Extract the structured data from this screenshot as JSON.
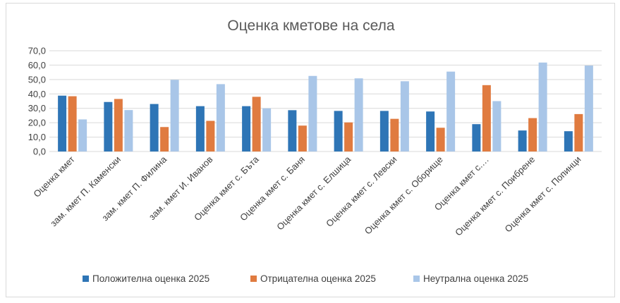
{
  "chart_data": {
    "type": "bar",
    "title": "Оценка кметове на села",
    "xlabel": "",
    "ylabel": "",
    "ylim": [
      0,
      70
    ],
    "yticks": [
      "0,0",
      "10,0",
      "20,0",
      "30,0",
      "40,0",
      "50,0",
      "60,0",
      "70,0"
    ],
    "grid": true,
    "legend_position": "bottom",
    "categories": [
      "Оценка кмет",
      "зам. кмет П. Каменски",
      "зам. кмет П. Филина",
      "зам. кмет И. Иванов",
      "Оценка кмет с. Бъта",
      "Оценка кмет с. Баня",
      "Оценка кмет с. Елшица",
      "Оценка кмет с. Левски",
      "Оценка кмет с. Оборище",
      "Оценка кмет с.…",
      "Оценка кмет с. Поибрене",
      "Оценка кмет с. Попинци"
    ],
    "series": [
      {
        "name": "Положителна оценка 2025",
        "color": "#2e75b6",
        "values": [
          38.8,
          34.4,
          33.0,
          31.5,
          31.5,
          28.7,
          28.2,
          28.2,
          27.8,
          19.0,
          14.6,
          14.1
        ]
      },
      {
        "name": "Отрицателна оценка 2025",
        "color": "#e07b40",
        "values": [
          38.4,
          36.5,
          17.0,
          21.3,
          38.0,
          18.0,
          20.2,
          22.7,
          16.5,
          46.1,
          23.2,
          26.0
        ]
      },
      {
        "name": "Неутрална оценка 2025",
        "color": "#a9c6e8",
        "values": [
          22.3,
          28.8,
          49.8,
          46.8,
          30.0,
          52.5,
          50.8,
          48.8,
          55.5,
          35.0,
          61.8,
          59.7
        ]
      }
    ]
  }
}
